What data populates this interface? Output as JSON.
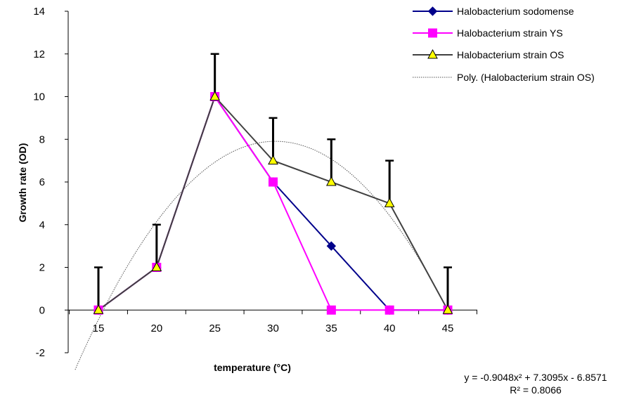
{
  "chart_data": {
    "type": "line",
    "xlabel": "temperature (°C)",
    "ylabel": "Growth rate (OD)",
    "x": [
      15,
      20,
      25,
      30,
      35,
      40,
      45
    ],
    "x_tick_labels": [
      "15",
      "20",
      "25",
      "30",
      "35",
      "40",
      "45"
    ],
    "ylim": [
      -2,
      14
    ],
    "y_ticks": [
      -2,
      0,
      2,
      4,
      6,
      8,
      10,
      12,
      14
    ],
    "y_tick_labels": [
      "-2",
      "0",
      "2",
      "4",
      "6",
      "8",
      "10",
      "12",
      "14"
    ],
    "error_bar_plus": [
      2,
      2,
      2,
      2,
      2,
      2,
      2
    ],
    "legend_position": "top-right",
    "series": [
      {
        "name": "Halobacterium sodomense",
        "values": [
          0,
          2,
          10,
          6,
          3,
          0,
          0
        ],
        "color": "#00008B",
        "marker": "diamond"
      },
      {
        "name": "Halobacterium strain YS",
        "values": [
          0,
          2,
          10,
          6,
          0,
          0,
          0
        ],
        "color": "#FF00FF",
        "marker": "square"
      },
      {
        "name": "Halobacterium strain OS",
        "values": [
          0,
          2,
          10,
          7,
          6,
          5,
          0
        ],
        "color": "#404040",
        "marker": "triangle",
        "marker_fill": "#FFFF00"
      }
    ],
    "trendline": {
      "name": "Poly. (Halobacterium strain OS)",
      "coefficients": [
        -0.9048,
        7.3095,
        -6.8571
      ],
      "equation": "y = -0.9048x² + 7.3095x - 6.8571",
      "r_squared": "R² = 0.8066",
      "color": "#555555",
      "style": "dotted"
    }
  }
}
